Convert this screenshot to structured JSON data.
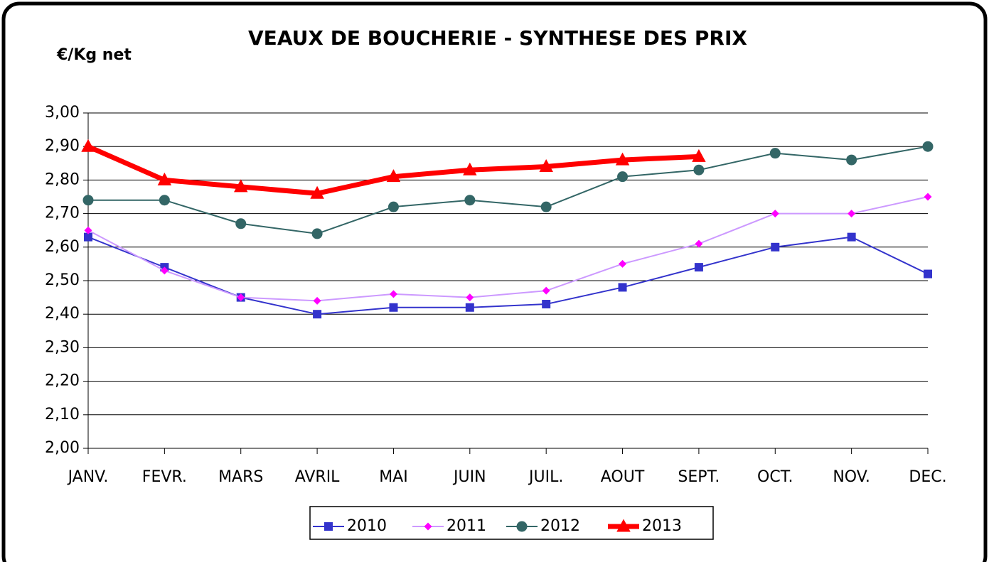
{
  "chart_data": {
    "type": "line",
    "title": "VEAUX DE BOUCHERIE - SYNTHESE DES PRIX",
    "y_label": "€/Kg net",
    "categories": [
      "JANV.",
      "FEVR.",
      "MARS",
      "AVRIL",
      "MAI",
      "JUIN",
      "JUIL.",
      "AOUT",
      "SEPT.",
      "OCT.",
      "NOV.",
      "DEC."
    ],
    "series": [
      {
        "name": "2010",
        "color": "#3333cc",
        "marker_color": "#3333cc",
        "marker": "square",
        "line_width": 2,
        "values": [
          2.63,
          2.54,
          2.45,
          2.4,
          2.42,
          2.42,
          2.43,
          2.48,
          2.54,
          2.6,
          2.63,
          2.52
        ]
      },
      {
        "name": "2011",
        "color": "#cc99ff",
        "marker_color": "#ff00ff",
        "marker": "diamond",
        "line_width": 2,
        "values": [
          2.65,
          2.53,
          2.45,
          2.44,
          2.46,
          2.45,
          2.47,
          2.55,
          2.61,
          2.7,
          2.7,
          2.75
        ]
      },
      {
        "name": "2012",
        "color": "#336666",
        "marker_color": "#336666",
        "marker": "circle",
        "line_width": 2,
        "values": [
          2.74,
          2.74,
          2.67,
          2.64,
          2.72,
          2.74,
          2.72,
          2.81,
          2.83,
          2.88,
          2.86,
          2.9
        ]
      },
      {
        "name": "2013",
        "color": "#ff0000",
        "marker_color": "#ff0000",
        "marker": "triangle",
        "line_width": 7,
        "values": [
          2.9,
          2.8,
          2.78,
          2.76,
          2.81,
          2.83,
          2.84,
          2.86,
          2.87,
          null,
          null,
          null
        ]
      }
    ],
    "ylim": [
      2.0,
      3.0
    ],
    "yticks": [
      {
        "value": 2.0,
        "label": "2,00"
      },
      {
        "value": 2.1,
        "label": "2,10"
      },
      {
        "value": 2.2,
        "label": "2,20"
      },
      {
        "value": 2.3,
        "label": "2,30"
      },
      {
        "value": 2.4,
        "label": "2,40"
      },
      {
        "value": 2.5,
        "label": "2,50"
      },
      {
        "value": 2.6,
        "label": "2,60"
      },
      {
        "value": 2.7,
        "label": "2,70"
      },
      {
        "value": 2.8,
        "label": "2,80"
      },
      {
        "value": 2.9,
        "label": "2,90"
      },
      {
        "value": 3.0,
        "label": "3,00"
      }
    ],
    "grid": true,
    "legend": "bottom"
  }
}
